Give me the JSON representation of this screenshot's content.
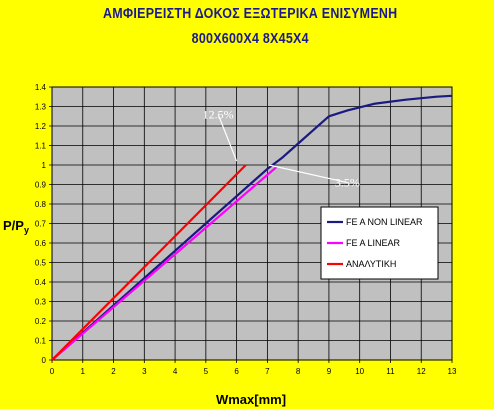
{
  "chart_data": {
    "type": "line",
    "title": "ΑΜΦΙΕΡΕΙΣΤΗ ΔΟΚΟΣ ΕΞΩΤΕΡΙΚΑ ΕΝΙΣΥΜΕΝΗ",
    "subtitle": "800Χ600Χ4   8Χ45Χ4",
    "xlabel": "Wmax[mm]",
    "ylabel": "P/P",
    "ylabel_sub": "y",
    "xlim": [
      0,
      13
    ],
    "ylim": [
      0,
      1.4
    ],
    "x_ticks": [
      "0",
      "1",
      "2",
      "3",
      "4",
      "5",
      "6",
      "7",
      "8",
      "9",
      "10",
      "11",
      "12",
      "13"
    ],
    "y_ticks": [
      "0",
      "0.1",
      "0.2",
      "0.3",
      "0.4",
      "0.5",
      "0.6",
      "0.7",
      "0.8",
      "0.9",
      "1",
      "1.1",
      "1.2",
      "1.3",
      "1.4"
    ],
    "grid": true,
    "legend_position": "right",
    "plot_bg": "#C0C0C0",
    "series": [
      {
        "name": "FE A NON LINEAR",
        "color": "#1a1a80",
        "points": [
          [
            0,
            0
          ],
          [
            1,
            0.14
          ],
          [
            2,
            0.28
          ],
          [
            3,
            0.42
          ],
          [
            4,
            0.56
          ],
          [
            5,
            0.7
          ],
          [
            6,
            0.84
          ],
          [
            7,
            0.98
          ],
          [
            7.5,
            1.04
          ],
          [
            8,
            1.11
          ],
          [
            8.5,
            1.18
          ],
          [
            9,
            1.25
          ],
          [
            9.6,
            1.28
          ],
          [
            10.5,
            1.315
          ],
          [
            11.5,
            1.335
          ],
          [
            12.5,
            1.35
          ],
          [
            13,
            1.355
          ]
        ]
      },
      {
        "name": "FE A LINEAR",
        "color": "#ff00ff",
        "points": [
          [
            0,
            0
          ],
          [
            7.3,
            0.99
          ]
        ]
      },
      {
        "name": "ΑΝΑΛΥΤΙΚΗ",
        "color": "#ff0000",
        "points": [
          [
            0,
            0
          ],
          [
            6.3,
            1.0
          ]
        ]
      }
    ],
    "annotations": [
      {
        "text": "12.5%",
        "x": 6.0,
        "y": 1.02,
        "label_x": 5.4,
        "label_y": 1.26
      },
      {
        "text": "3.5%",
        "x": 7.05,
        "y": 1.0,
        "label_x": 9.6,
        "label_y": 0.91
      }
    ]
  }
}
